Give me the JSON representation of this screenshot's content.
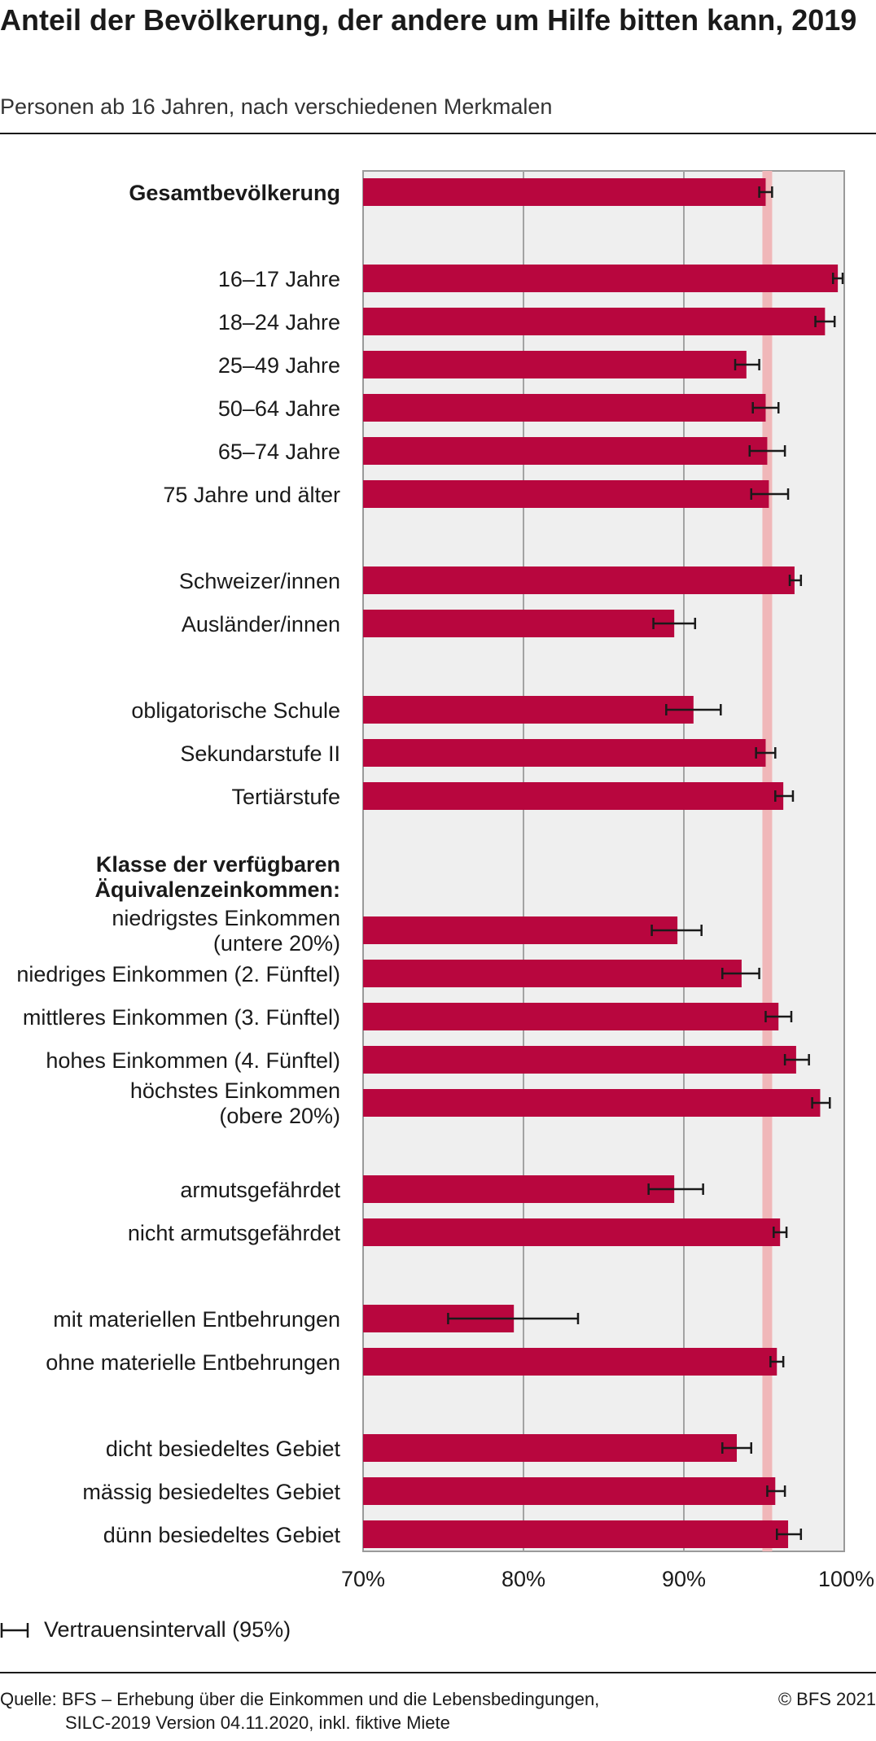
{
  "chart_data": {
    "type": "bar",
    "orientation": "horizontal",
    "title": "Anteil der Bevölkerung, der andere um Hilfe bitten kann, 2019",
    "subtitle": "Personen ab 16 Jahren, nach verschiedenen Merkmalen",
    "xlim": [
      70,
      100
    ],
    "x_ticks": [
      "70%",
      "80%",
      "90%",
      "100%"
    ],
    "grid": "vertical",
    "reference_value": 95.2,
    "bar_color": "#b8063e",
    "reference_color": "#f0b7b9",
    "plot_background": "#efefef",
    "groups": [
      {
        "header": "",
        "items": [
          {
            "label": "Gesamtbevölkerung",
            "value": 95.1,
            "ci_low": 94.7,
            "ci_high": 95.5,
            "bold": true
          }
        ]
      },
      {
        "header": "",
        "items": [
          {
            "label": "16–17 Jahre",
            "value": 99.6,
            "ci_low": 99.3,
            "ci_high": 99.9
          },
          {
            "label": "18–24 Jahre",
            "value": 98.8,
            "ci_low": 98.2,
            "ci_high": 99.4
          },
          {
            "label": "25–49 Jahre",
            "value": 93.9,
            "ci_low": 93.2,
            "ci_high": 94.7
          },
          {
            "label": "50–64 Jahre",
            "value": 95.1,
            "ci_low": 94.3,
            "ci_high": 95.9
          },
          {
            "label": "65–74 Jahre",
            "value": 95.2,
            "ci_low": 94.1,
            "ci_high": 96.3
          },
          {
            "label": "75 Jahre und älter",
            "value": 95.3,
            "ci_low": 94.2,
            "ci_high": 96.5
          }
        ]
      },
      {
        "header": "",
        "items": [
          {
            "label": "Schweizer/innen",
            "value": 96.9,
            "ci_low": 96.6,
            "ci_high": 97.3
          },
          {
            "label": "Ausländer/innen",
            "value": 89.4,
            "ci_low": 88.1,
            "ci_high": 90.7
          }
        ]
      },
      {
        "header": "",
        "items": [
          {
            "label": "obligatorische Schule",
            "value": 90.6,
            "ci_low": 88.9,
            "ci_high": 92.3
          },
          {
            "label": "Sekundarstufe II",
            "value": 95.1,
            "ci_low": 94.5,
            "ci_high": 95.7
          },
          {
            "label": "Tertiärstufe",
            "value": 96.2,
            "ci_low": 95.7,
            "ci_high": 96.8
          }
        ]
      },
      {
        "header": [
          "Klasse der verfügbaren",
          "Äquivalenzeinkommen:"
        ],
        "items": [
          {
            "label": [
              "niedrigstes Einkommen",
              "(untere 20%)"
            ],
            "value": 89.6,
            "ci_low": 88.0,
            "ci_high": 91.1
          },
          {
            "label": "niedriges Einkommen (2. Fünftel)",
            "value": 93.6,
            "ci_low": 92.4,
            "ci_high": 94.7
          },
          {
            "label": "mittleres Einkommen (3. Fünftel)",
            "value": 95.9,
            "ci_low": 95.1,
            "ci_high": 96.7
          },
          {
            "label": "hohes Einkommen (4. Fünftel)",
            "value": 97.0,
            "ci_low": 96.3,
            "ci_high": 97.8
          },
          {
            "label": [
              "höchstes Einkommen",
              "(obere 20%)"
            ],
            "value": 98.5,
            "ci_low": 98.0,
            "ci_high": 99.1
          }
        ]
      },
      {
        "header": "",
        "items": [
          {
            "label": "armutsgefährdet",
            "value": 89.4,
            "ci_low": 87.8,
            "ci_high": 91.2
          },
          {
            "label": "nicht armutsgefährdet",
            "value": 96.0,
            "ci_low": 95.6,
            "ci_high": 96.4
          }
        ]
      },
      {
        "header": "",
        "items": [
          {
            "label": "mit materiellen Entbehrungen",
            "value": 79.4,
            "ci_low": 75.3,
            "ci_high": 83.4
          },
          {
            "label": "ohne materielle Entbehrungen",
            "value": 95.8,
            "ci_low": 95.4,
            "ci_high": 96.2
          }
        ]
      },
      {
        "header": "",
        "items": [
          {
            "label": "dicht besiedeltes Gebiet",
            "value": 93.3,
            "ci_low": 92.4,
            "ci_high": 94.2
          },
          {
            "label": "mässig besiedeltes Gebiet",
            "value": 95.7,
            "ci_low": 95.2,
            "ci_high": 96.3
          },
          {
            "label": "dünn besiedeltes Gebiet",
            "value": 96.5,
            "ci_low": 95.8,
            "ci_high": 97.3
          }
        ]
      }
    ],
    "legend": {
      "label": "Vertrauensintervall (95%)"
    },
    "source_lines": [
      "Quelle: BFS – Erhebung über die Einkommen und die Lebensbedingungen,",
      "SILC-2019 Version 04.11.2020, inkl. fiktive Miete"
    ],
    "copyright": "© BFS 2021"
  }
}
